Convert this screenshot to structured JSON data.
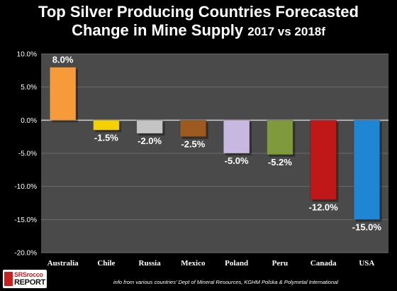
{
  "title": {
    "line1": "Top Silver Producing Countries Forecasted",
    "line2_main": "Change in Mine Supply ",
    "line2_sub": "2017 vs 2018f"
  },
  "source_note": "info from various countries' Dept of Mineral Resources, KGHM Polska & Polymetal International",
  "logo": {
    "line1": "SRSrocco",
    "line2": "REPORT"
  },
  "colors": {
    "background": "#000000",
    "plot_area": "#4a4a4a",
    "gridline": "#6a6a6a",
    "bars": [
      "#f79a3a",
      "#f5d000",
      "#c4c4c4",
      "#9c5a1e",
      "#c8b8e0",
      "#7e9a3c",
      "#c01818",
      "#1f86d6"
    ]
  },
  "chart_data": {
    "type": "bar",
    "title": "Top Silver Producing Countries Forecasted Change in Mine Supply 2017 vs 2018f",
    "categories": [
      "Australia",
      "Chile",
      "Russia",
      "Mexico",
      "Poland",
      "Peru",
      "Canada",
      "USA"
    ],
    "values": [
      8.0,
      -1.5,
      -2.0,
      -2.5,
      -5.0,
      -5.2,
      -12.0,
      -15.0
    ],
    "data_labels": [
      "8.0%",
      "-1.5%",
      "-2.0%",
      "-2.5%",
      "-5.0%",
      "-5.2%",
      "-12.0%",
      "-15.0%"
    ],
    "ylim": [
      -20,
      10
    ],
    "yticks": [
      10,
      5,
      0,
      -5,
      -10,
      -15,
      -20
    ],
    "ytick_labels": [
      "10.0%",
      "5.0%",
      "0.0%",
      "-5.0%",
      "-10.0%",
      "-15.0%",
      "-20.0%"
    ],
    "xlabel": "",
    "ylabel": "",
    "grid": true,
    "legend": "none"
  }
}
